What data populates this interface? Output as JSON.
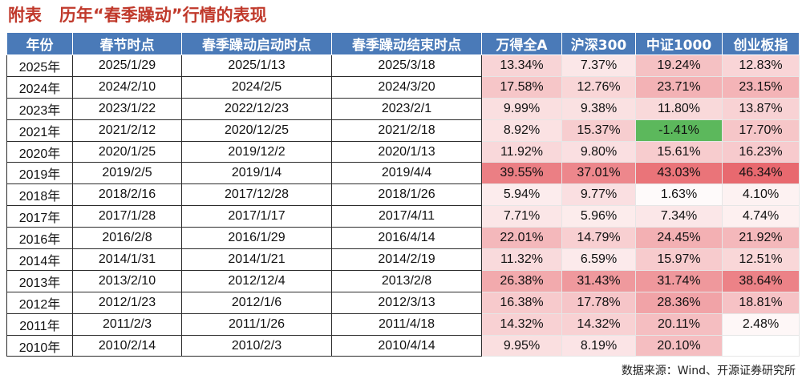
{
  "title": {
    "left": "附表",
    "main": "历年“春季躁动”行情的表现"
  },
  "table": {
    "headers": [
      "年份",
      "春节时点",
      "春季躁动启动时点",
      "春季躁动结束时点",
      "万得全A",
      "沪深300",
      "中证1000",
      "创业板指"
    ],
    "rows": [
      [
        "2025年",
        "2025/1/29",
        "2025/1/13",
        "2025/3/18",
        "13.34%",
        "7.37%",
        "19.24%",
        "12.83%"
      ],
      [
        "2024年",
        "2024/2/10",
        "2024/2/5",
        "2024/3/20",
        "17.58%",
        "12.76%",
        "23.71%",
        "23.15%"
      ],
      [
        "2023年",
        "2023/1/22",
        "2022/12/23",
        "2023/2/1",
        "9.99%",
        "9.38%",
        "11.80%",
        "13.87%"
      ],
      [
        "2021年",
        "2021/2/12",
        "2020/12/25",
        "2021/2/18",
        "8.92%",
        "15.37%",
        "-1.41%",
        "17.70%"
      ],
      [
        "2020年",
        "2020/1/25",
        "2019/12/2",
        "2020/1/13",
        "11.92%",
        "9.80%",
        "15.61%",
        "16.23%"
      ],
      [
        "2019年",
        "2019/2/5",
        "2019/1/4",
        "2019/4/4",
        "39.55%",
        "37.01%",
        "43.03%",
        "46.34%"
      ],
      [
        "2018年",
        "2018/2/16",
        "2017/12/28",
        "2018/1/26",
        "5.94%",
        "9.77%",
        "1.63%",
        "4.10%"
      ],
      [
        "2017年",
        "2017/1/28",
        "2017/1/17",
        "2017/4/11",
        "7.71%",
        "5.96%",
        "7.34%",
        "4.74%"
      ],
      [
        "2016年",
        "2016/2/8",
        "2016/1/29",
        "2016/4/14",
        "22.01%",
        "14.79%",
        "24.45%",
        "21.92%"
      ],
      [
        "2014年",
        "2014/1/31",
        "2014/1/21",
        "2014/2/19",
        "11.32%",
        "6.59%",
        "15.97%",
        "12.51%"
      ],
      [
        "2013年",
        "2013/2/10",
        "2012/12/4",
        "2013/2/8",
        "26.38%",
        "31.43%",
        "31.74%",
        "38.64%"
      ],
      [
        "2012年",
        "2012/1/23",
        "2012/1/6",
        "2012/3/13",
        "16.38%",
        "17.78%",
        "28.36%",
        "18.81%"
      ],
      [
        "2011年",
        "2011/2/3",
        "2011/1/26",
        "2011/4/18",
        "14.32%",
        "14.32%",
        "20.11%",
        "2.48%"
      ],
      [
        "2010年",
        "2010/2/14",
        "2010/2/3",
        "2010/4/14",
        "9.95%",
        "8.19%",
        "20.10%",
        ""
      ]
    ]
  },
  "colors": {
    "header_bg": "#4a7ab8",
    "title": "#c0392b",
    "negative": "#5cb85c",
    "heat_max": "#e8696f",
    "heat_min": "#ffffff"
  },
  "source": "数据来源：Wind、开源证券研究所"
}
